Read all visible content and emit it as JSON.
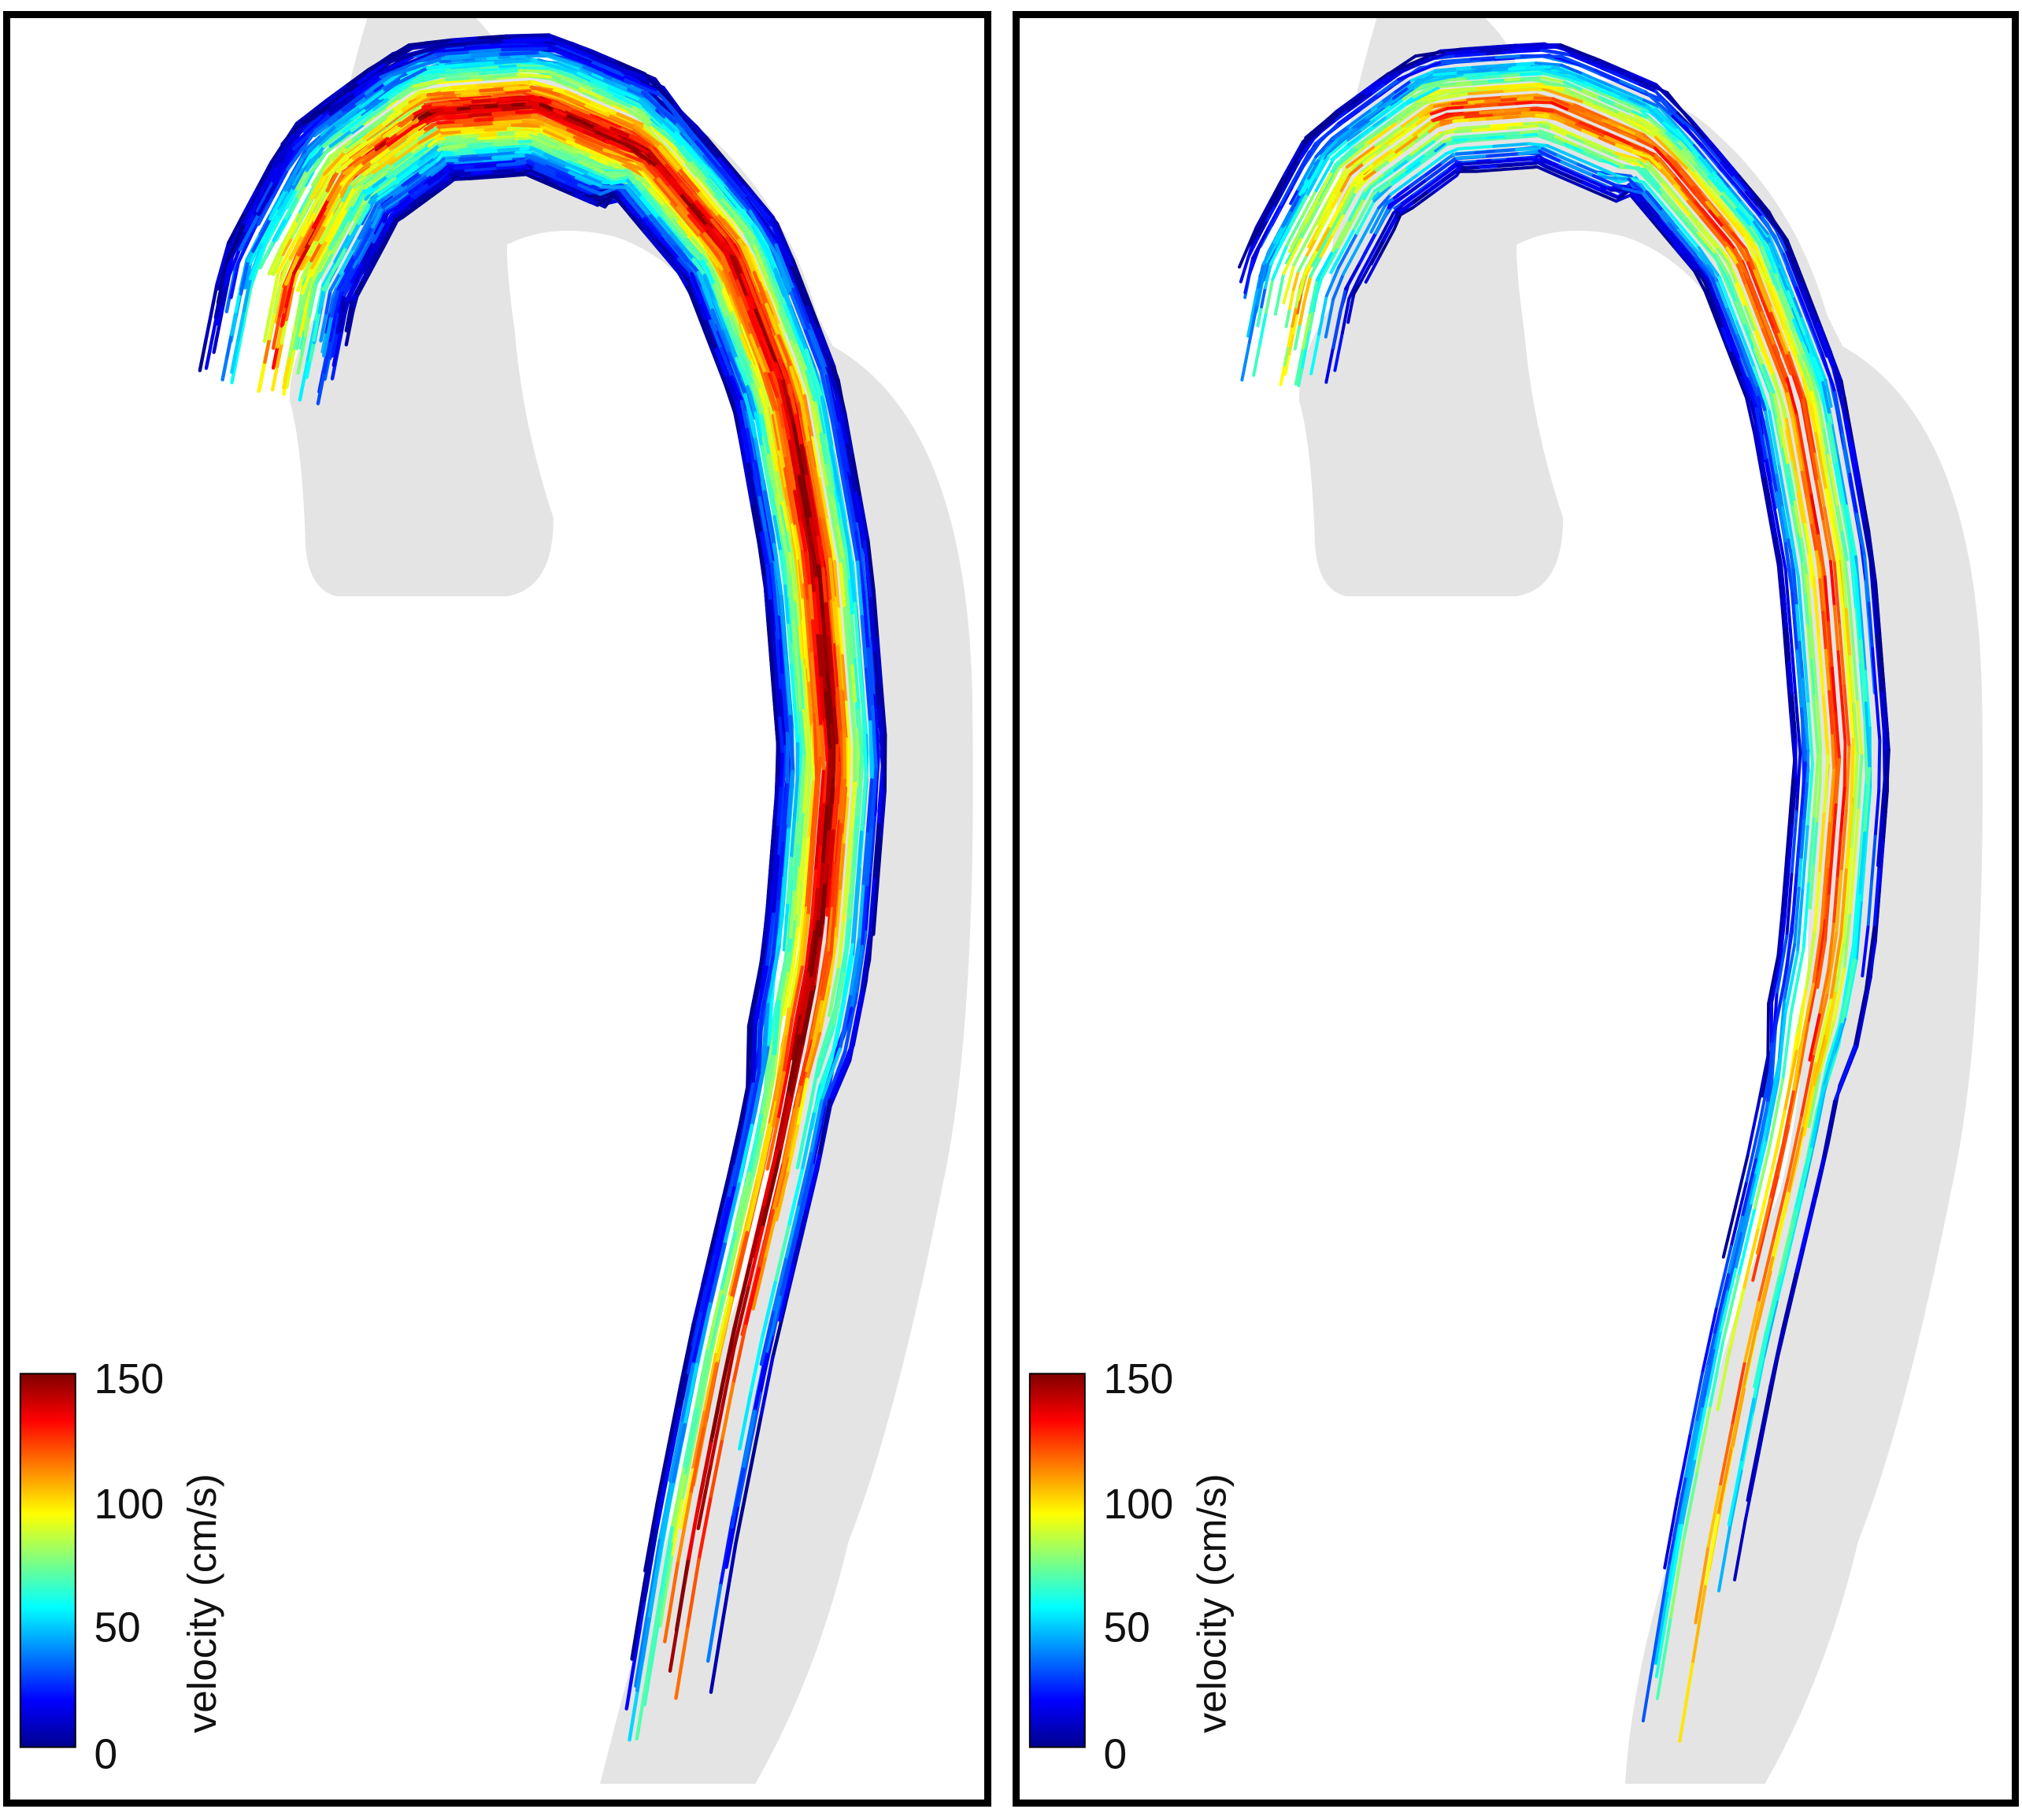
{
  "colormap": {
    "name": "jet",
    "stops": [
      "#00008f",
      "#0000ff",
      "#0080ff",
      "#00ffff",
      "#80ff80",
      "#ffff00",
      "#ff8000",
      "#ff0000",
      "#800000"
    ]
  },
  "colorbar": {
    "label": "velocity (cm/s)",
    "ticks": [
      "150",
      "100",
      "50",
      "0"
    ],
    "range": [
      0,
      150
    ],
    "unit": "cm/s"
  },
  "panels": [
    {
      "id": "left",
      "streamline_density": "dense",
      "peak_region": "descending aorta, high velocity band",
      "colorbar": {
        "ticks": [
          "150",
          "100",
          "50",
          "0"
        ],
        "label": "velocity (cm/s)"
      }
    },
    {
      "id": "right",
      "streamline_density": "sparse",
      "peak_region": "descending aorta, thin streamlines",
      "colorbar": {
        "ticks": [
          "150",
          "100",
          "50",
          "0"
        ],
        "label": "velocity (cm/s)"
      }
    }
  ],
  "vessel_color": "#e3e3e3",
  "frame_color": "#000000"
}
